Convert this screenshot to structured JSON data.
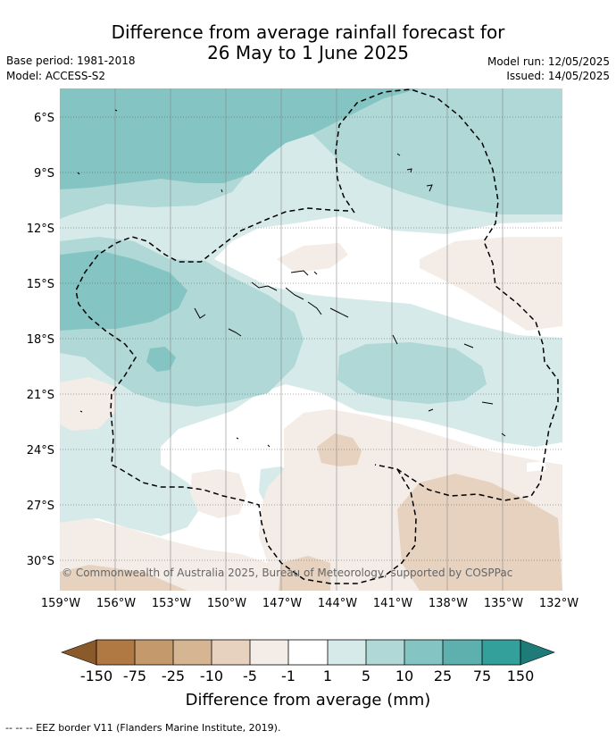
{
  "title": {
    "line1": "Difference from average rainfall forecast for",
    "line2": "26 May to 1 June 2025"
  },
  "meta": {
    "base_period": "Base period: 1981-2018",
    "model": "Model: ACCESS-S2",
    "model_run": "Model run: 12/05/2025",
    "issued": "Issued: 14/05/2025"
  },
  "map": {
    "lat_labels": [
      "6°S",
      "9°S",
      "12°S",
      "15°S",
      "18°S",
      "21°S",
      "24°S",
      "27°S",
      "30°S"
    ],
    "lon_labels": [
      "159°W",
      "156°W",
      "153°W",
      "150°W",
      "147°W",
      "144°W",
      "141°W",
      "138°W",
      "135°W",
      "132°W"
    ],
    "copyright": "© Commonwealth of Australia 2025, Bureau of Meteorology, supported by COSPPac",
    "border_style": "dashed",
    "gridlines": true
  },
  "colorbar": {
    "title": "Difference from average (mm)",
    "tick_labels": [
      "-150",
      "-75",
      "-25",
      "-10",
      "-5",
      "-1",
      "1",
      "5",
      "10",
      "25",
      "75",
      "150"
    ],
    "colors": [
      "#8b5a2b",
      "#b07843",
      "#c49a6c",
      "#d5b592",
      "#e6d2be",
      "#f4ece6",
      "#ffffff",
      "#d6ebe9",
      "#afd8d6",
      "#84c4c2",
      "#5db0ae",
      "#33a09c",
      "#1e7b77"
    ]
  },
  "footer": "-- -- -- EEZ border V11 (Flanders Marine Institute, 2019)."
}
